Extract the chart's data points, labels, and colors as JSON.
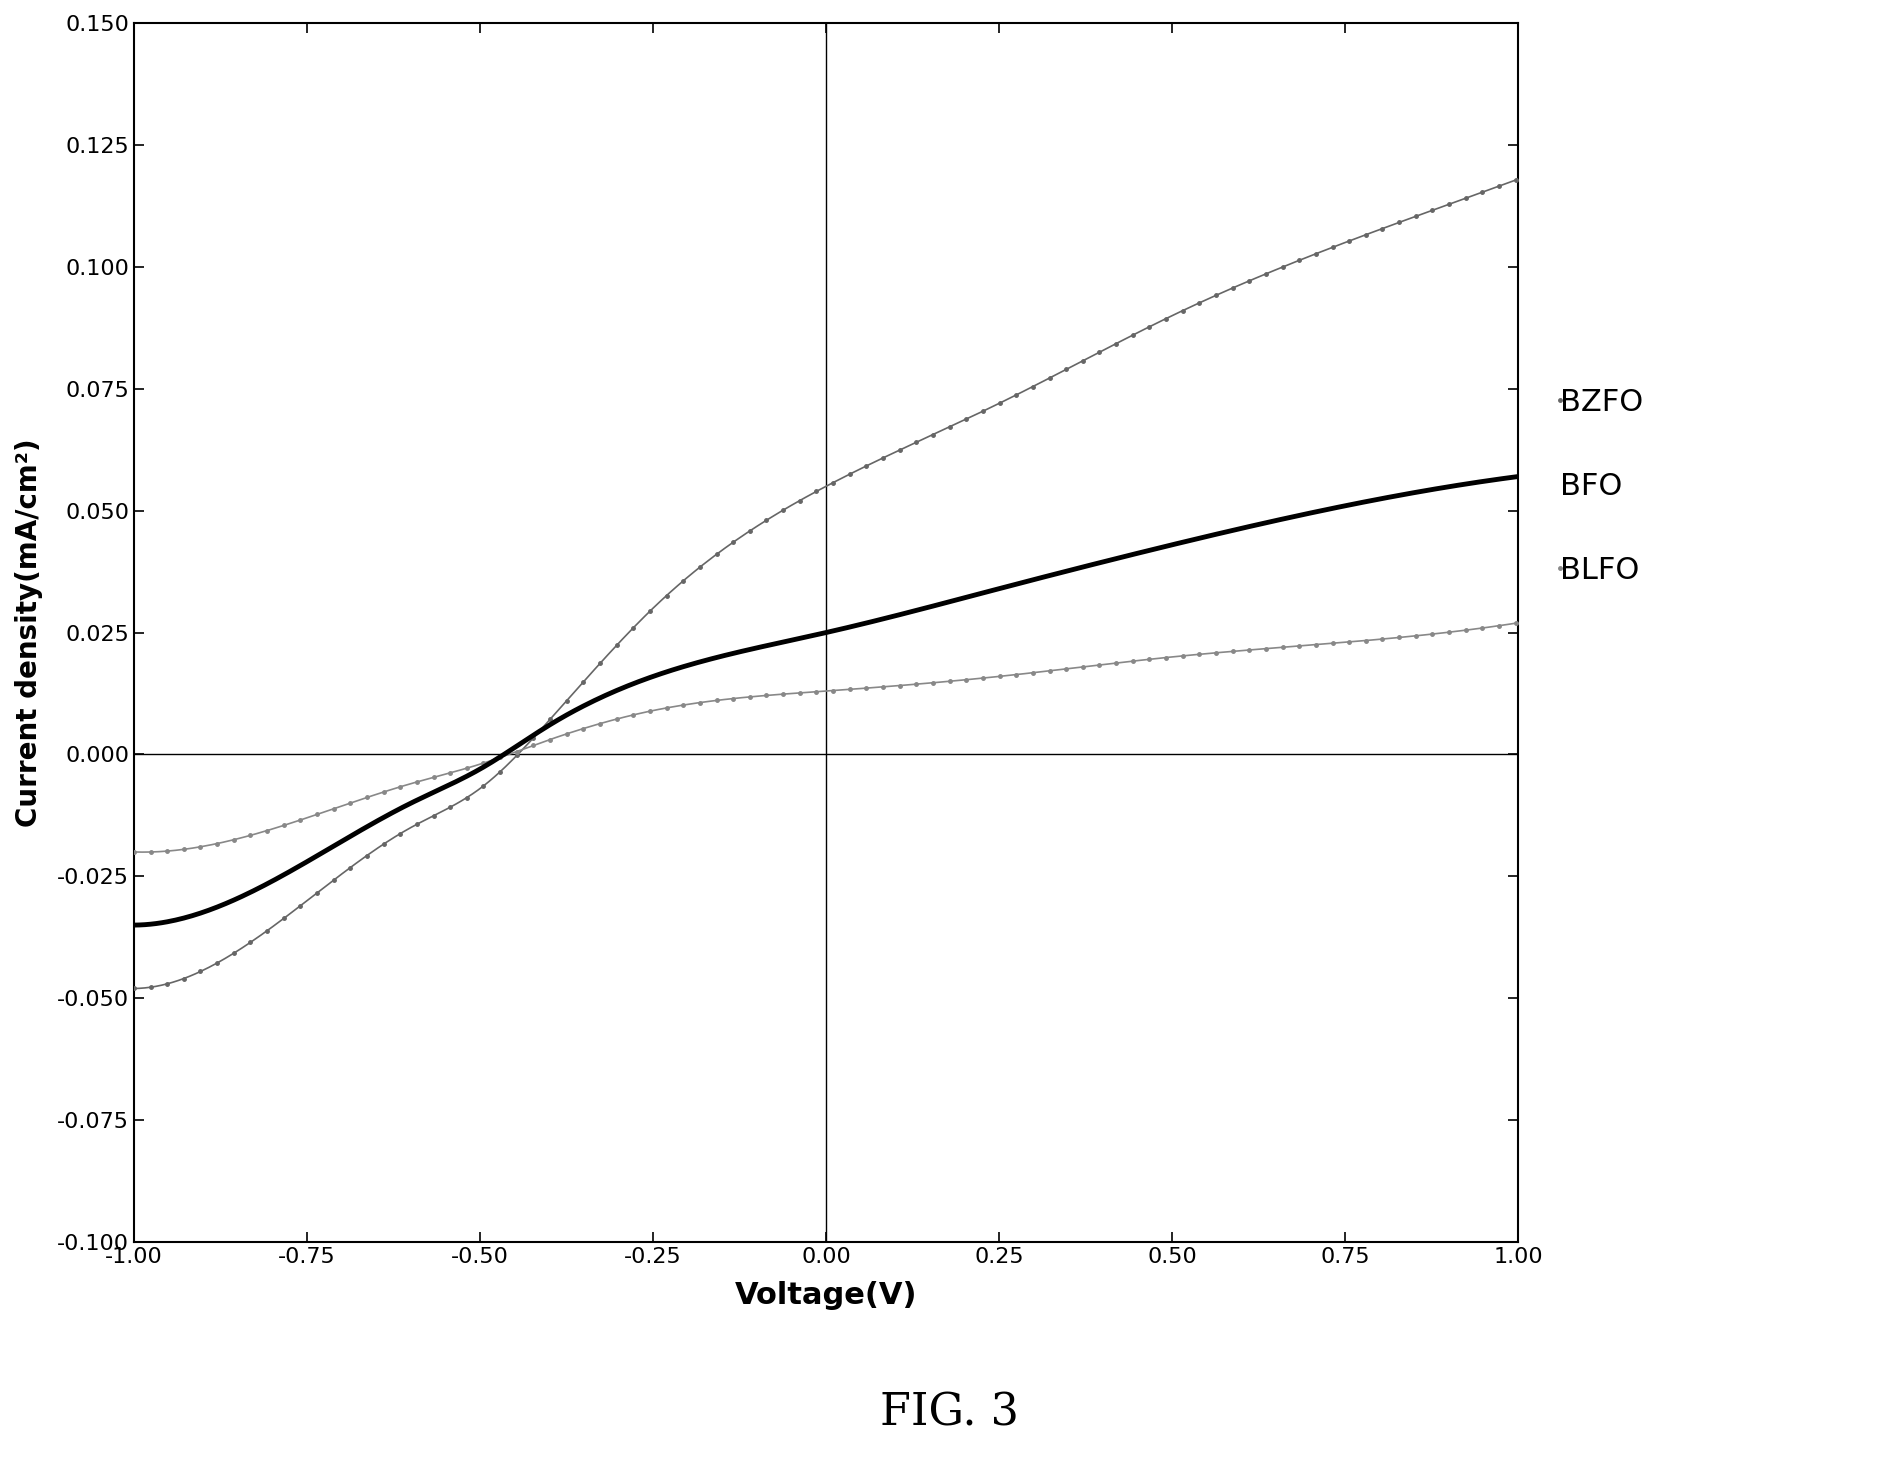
{
  "title": "FIG. 3",
  "xlabel": "Voltage(V)",
  "ylabel": "Current density(mA/cm²)",
  "xlim": [
    -1.0,
    1.0
  ],
  "ylim": [
    -0.1,
    0.15
  ],
  "xticks": [
    -1.0,
    -0.75,
    -0.5,
    -0.25,
    0.0,
    0.25,
    0.5,
    0.75,
    1.0
  ],
  "yticks": [
    -0.1,
    -0.075,
    -0.05,
    -0.025,
    0.0,
    0.025,
    0.05,
    0.075,
    0.1,
    0.125,
    0.15
  ],
  "legend_labels": [
    "BZFO",
    "BFO",
    "BLFO"
  ],
  "background_color": "#ffffff",
  "BZFO_color": "#666666",
  "BFO_color": "#000000",
  "BLFO_color": "#888888",
  "bzfo_keypoints_x": [
    -1.0,
    -0.75,
    -0.6,
    -0.5,
    -0.4,
    -0.25,
    0.0,
    0.25,
    0.5,
    0.75,
    1.0
  ],
  "bzfo_keypoints_y": [
    -0.048,
    -0.03,
    -0.015,
    -0.007,
    0.007,
    0.03,
    0.055,
    0.072,
    0.09,
    0.105,
    0.118
  ],
  "bfo_keypoints_x": [
    -1.0,
    -0.75,
    -0.6,
    -0.5,
    -0.4,
    -0.25,
    0.0,
    0.25,
    0.5,
    0.75,
    1.0
  ],
  "bfo_keypoints_y": [
    -0.035,
    -0.022,
    -0.01,
    -0.003,
    0.006,
    0.016,
    0.025,
    0.034,
    0.043,
    0.051,
    0.057
  ],
  "blfo_keypoints_x": [
    -1.0,
    -0.75,
    -0.6,
    -0.5,
    -0.4,
    -0.25,
    0.0,
    0.25,
    0.5,
    0.75,
    1.0
  ],
  "blfo_keypoints_y": [
    -0.02,
    -0.013,
    -0.006,
    -0.002,
    0.003,
    0.009,
    0.013,
    0.016,
    0.02,
    0.023,
    0.027
  ]
}
